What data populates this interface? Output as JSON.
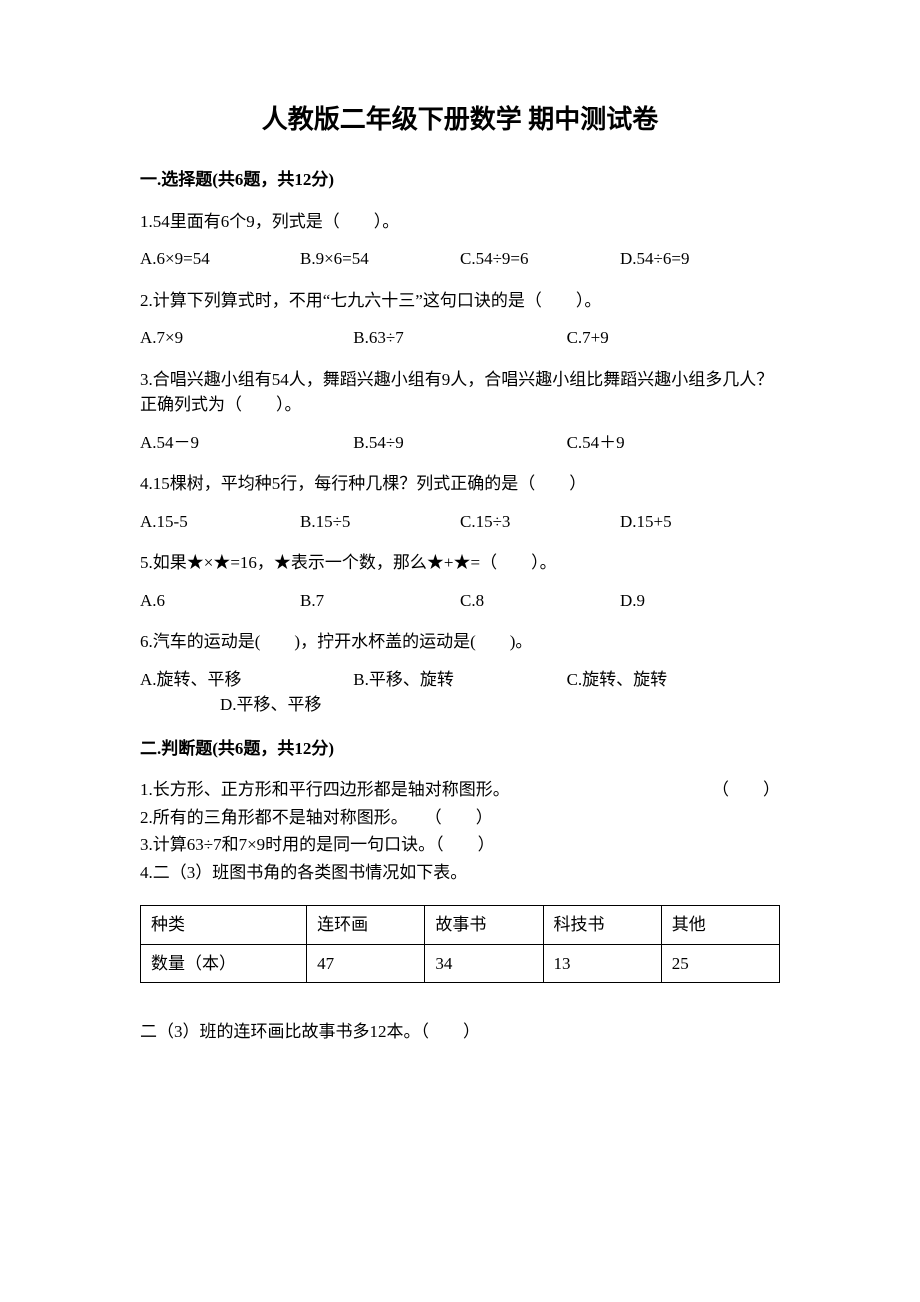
{
  "title": "人教版二年级下册数学 期中测试卷",
  "section1": {
    "header": "一.选择题(共6题，共12分)",
    "q1": {
      "stem": "1.54里面有6个9，列式是（　　）。",
      "A": "A.6×9=54",
      "B": "B.9×6=54",
      "C": "C.54÷9=6",
      "D": "D.54÷6=9"
    },
    "q2": {
      "stem": "2.计算下列算式时，不用“七九六十三”这句口诀的是（　　）。",
      "A": "A.7×9",
      "B": "B.63÷7",
      "C": "C.7+9"
    },
    "q3": {
      "stem": "3.合唱兴趣小组有54人，舞蹈兴趣小组有9人，合唱兴趣小组比舞蹈兴趣小组多几人？正确列式为（　　）。",
      "A": "A.54－9",
      "B": "B.54÷9",
      "C": "C.54＋9"
    },
    "q4": {
      "stem": "4.15棵树，平均种5行，每行种几棵？列式正确的是（　　）",
      "A": "A.15-5",
      "B": "B.15÷5",
      "C": "C.15÷3",
      "D": "D.15+5"
    },
    "q5": {
      "stem": "5.如果★×★=16，★表示一个数，那么★+★=（　　）。",
      "A": "A.6",
      "B": "B.7",
      "C": "C.8",
      "D": "D.9"
    },
    "q6": {
      "stem": "6.汽车的运动是(　　)，拧开水杯盖的运动是(　　)。",
      "A": "A.旋转、平移",
      "B": "B.平移、旋转",
      "C": "C.旋转、旋转",
      "D": "D.平移、平移"
    }
  },
  "section2": {
    "header": "二.判断题(共6题，共12分)",
    "j1": {
      "text": "1.长方形、正方形和平行四边形都是轴对称图形。",
      "paren": "（　　）"
    },
    "j2": {
      "text": "2.所有的三角形都不是轴对称图形。　　（　　）",
      "paren": ""
    },
    "j3": {
      "text": "3.计算63÷7和7×9时用的是同一句口诀。（　　）",
      "paren": ""
    },
    "j4": {
      "text": "4.二（3）班图书角的各类图书情况如下表。",
      "paren": ""
    },
    "table": {
      "columns": [
        "种类",
        "连环画",
        "故事书",
        "科技书",
        "其他"
      ],
      "row_label": "数量（本）",
      "values": [
        "47",
        "34",
        "13",
        "25"
      ]
    },
    "after_table": "二（3）班的连环画比故事书多12本。（　　）"
  }
}
